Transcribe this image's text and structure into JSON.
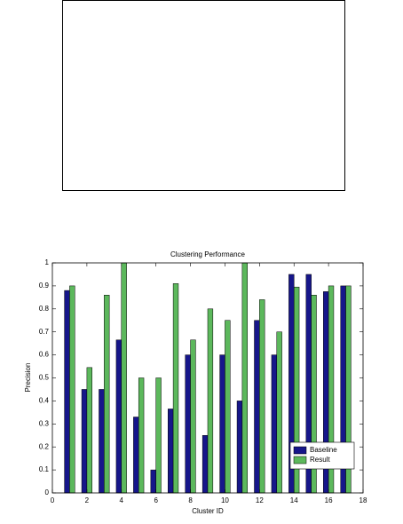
{
  "chart_data": {
    "type": "bar",
    "title": "Clustering Performance",
    "x_label": "Cluster ID",
    "y_label": "Precision",
    "x": [
      1,
      2,
      3,
      4,
      5,
      6,
      7,
      8,
      9,
      10,
      11,
      12,
      13,
      14,
      15,
      16,
      17
    ],
    "series": [
      {
        "name": "Baseline",
        "color": "#16168a",
        "values": [
          0.88,
          0.45,
          0.45,
          0.665,
          0.33,
          0.1,
          0.365,
          0.6,
          0.25,
          0.6,
          0.4,
          0.75,
          0.6,
          0.95,
          0.95,
          0.875,
          0.9
        ]
      },
      {
        "name": "Result",
        "color": "#5cb85c",
        "values": [
          0.9,
          0.545,
          0.86,
          1.0,
          0.5,
          0.5,
          0.91,
          0.665,
          0.8,
          0.75,
          1.0,
          0.84,
          0.7,
          0.895,
          0.86,
          0.9,
          0.9
        ]
      }
    ],
    "xlim": [
      0,
      18
    ],
    "xticks": [
      0,
      2,
      4,
      6,
      8,
      10,
      12,
      14,
      16,
      18
    ],
    "ylim": [
      0,
      1
    ],
    "yticks": [
      0,
      0.1,
      0.2,
      0.3,
      0.4,
      0.5,
      0.6,
      0.7,
      0.8,
      0.9,
      1
    ],
    "legend": "lower right"
  }
}
